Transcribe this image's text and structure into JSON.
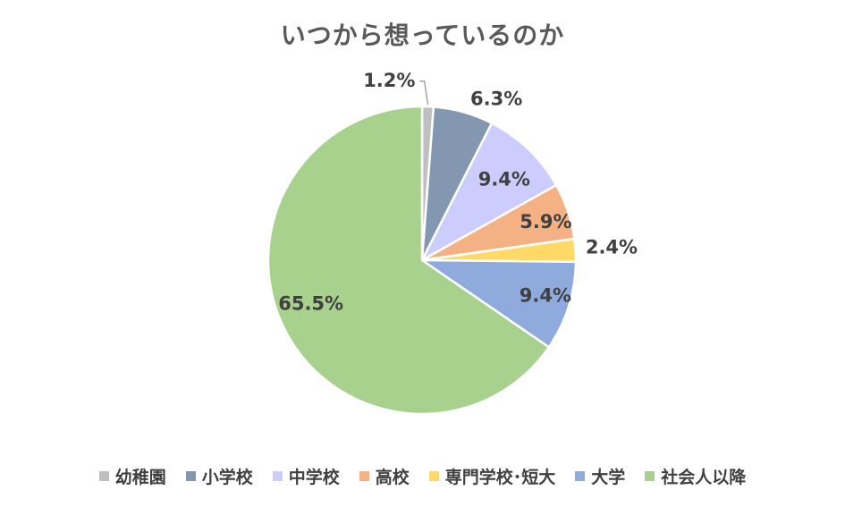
{
  "chart_data": {
    "type": "pie",
    "title": "いつから想っているのか",
    "categories": [
      "幼稚園",
      "小学校",
      "中学校",
      "高校",
      "専門学校･短大",
      "大学",
      "社会人以降"
    ],
    "values": [
      1.2,
      6.3,
      9.4,
      5.9,
      2.4,
      9.4,
      65.5
    ],
    "labels": [
      "1.2%",
      "6.3%",
      "9.4%",
      "5.9%",
      "2.4%",
      "9.4%",
      "65.5%"
    ],
    "colors": [
      "#bfbfbf",
      "#8497b0",
      "#ccccff",
      "#f4b183",
      "#ffd966",
      "#8faadc",
      "#a9d18e"
    ],
    "legend_position": "bottom",
    "start_angle_deg": 0,
    "direction": "clockwise"
  }
}
